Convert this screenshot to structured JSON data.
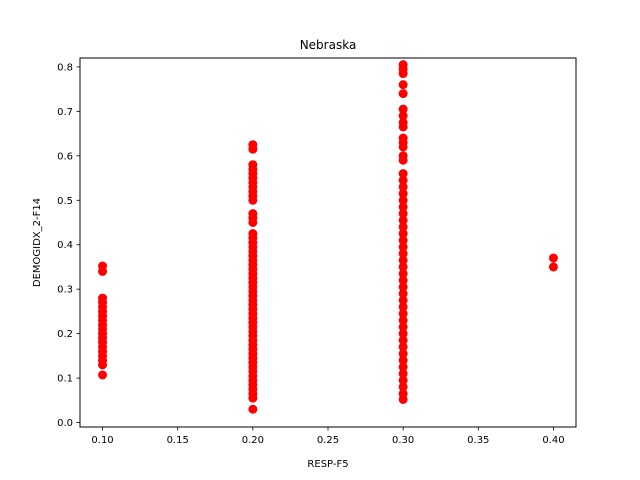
{
  "chart_data": {
    "type": "scatter",
    "title": "Nebraska",
    "xlabel": "RESP-F5",
    "ylabel": "DEMOGIDX_2-F14",
    "xlim": [
      0.085,
      0.415
    ],
    "ylim": [
      -0.01,
      0.82
    ],
    "xticks": [
      0.1,
      0.15,
      0.2,
      0.25,
      0.3,
      0.35,
      0.4
    ],
    "xtick_labels": [
      "0.10",
      "0.15",
      "0.20",
      "0.25",
      "0.30",
      "0.35",
      "0.40"
    ],
    "yticks": [
      0.0,
      0.1,
      0.2,
      0.3,
      0.4,
      0.5,
      0.6,
      0.7,
      0.8
    ],
    "ytick_labels": [
      "0.0",
      "0.1",
      "0.2",
      "0.3",
      "0.4",
      "0.5",
      "0.6",
      "0.7",
      "0.8"
    ],
    "grid": false,
    "marker_color": "#ff0000",
    "series": [
      {
        "points": [
          [
            0.1,
            0.107
          ],
          [
            0.1,
            0.13
          ],
          [
            0.1,
            0.14
          ],
          [
            0.1,
            0.15
          ],
          [
            0.1,
            0.16
          ],
          [
            0.1,
            0.17
          ],
          [
            0.1,
            0.18
          ],
          [
            0.1,
            0.19
          ],
          [
            0.1,
            0.2
          ],
          [
            0.1,
            0.21
          ],
          [
            0.1,
            0.22
          ],
          [
            0.1,
            0.23
          ],
          [
            0.1,
            0.24
          ],
          [
            0.1,
            0.25
          ],
          [
            0.1,
            0.26
          ],
          [
            0.1,
            0.27
          ],
          [
            0.1,
            0.28
          ],
          [
            0.1,
            0.34
          ],
          [
            0.1,
            0.352
          ],
          [
            0.2,
            0.03
          ],
          [
            0.2,
            0.055
          ],
          [
            0.2,
            0.065
          ],
          [
            0.2,
            0.075
          ],
          [
            0.2,
            0.085
          ],
          [
            0.2,
            0.095
          ],
          [
            0.2,
            0.105
          ],
          [
            0.2,
            0.115
          ],
          [
            0.2,
            0.125
          ],
          [
            0.2,
            0.135
          ],
          [
            0.2,
            0.145
          ],
          [
            0.2,
            0.155
          ],
          [
            0.2,
            0.165
          ],
          [
            0.2,
            0.175
          ],
          [
            0.2,
            0.185
          ],
          [
            0.2,
            0.195
          ],
          [
            0.2,
            0.205
          ],
          [
            0.2,
            0.215
          ],
          [
            0.2,
            0.225
          ],
          [
            0.2,
            0.235
          ],
          [
            0.2,
            0.245
          ],
          [
            0.2,
            0.255
          ],
          [
            0.2,
            0.265
          ],
          [
            0.2,
            0.275
          ],
          [
            0.2,
            0.285
          ],
          [
            0.2,
            0.295
          ],
          [
            0.2,
            0.305
          ],
          [
            0.2,
            0.315
          ],
          [
            0.2,
            0.325
          ],
          [
            0.2,
            0.335
          ],
          [
            0.2,
            0.345
          ],
          [
            0.2,
            0.355
          ],
          [
            0.2,
            0.365
          ],
          [
            0.2,
            0.375
          ],
          [
            0.2,
            0.385
          ],
          [
            0.2,
            0.395
          ],
          [
            0.2,
            0.405
          ],
          [
            0.2,
            0.415
          ],
          [
            0.2,
            0.425
          ],
          [
            0.2,
            0.45
          ],
          [
            0.2,
            0.46
          ],
          [
            0.2,
            0.47
          ],
          [
            0.2,
            0.5
          ],
          [
            0.2,
            0.51
          ],
          [
            0.2,
            0.52
          ],
          [
            0.2,
            0.53
          ],
          [
            0.2,
            0.54
          ],
          [
            0.2,
            0.55
          ],
          [
            0.2,
            0.56
          ],
          [
            0.2,
            0.57
          ],
          [
            0.2,
            0.58
          ],
          [
            0.2,
            0.615
          ],
          [
            0.2,
            0.625
          ],
          [
            0.3,
            0.052
          ],
          [
            0.3,
            0.065
          ],
          [
            0.3,
            0.08
          ],
          [
            0.3,
            0.095
          ],
          [
            0.3,
            0.11
          ],
          [
            0.3,
            0.125
          ],
          [
            0.3,
            0.14
          ],
          [
            0.3,
            0.155
          ],
          [
            0.3,
            0.17
          ],
          [
            0.3,
            0.185
          ],
          [
            0.3,
            0.2
          ],
          [
            0.3,
            0.215
          ],
          [
            0.3,
            0.23
          ],
          [
            0.3,
            0.245
          ],
          [
            0.3,
            0.26
          ],
          [
            0.3,
            0.275
          ],
          [
            0.3,
            0.29
          ],
          [
            0.3,
            0.305
          ],
          [
            0.3,
            0.32
          ],
          [
            0.3,
            0.335
          ],
          [
            0.3,
            0.35
          ],
          [
            0.3,
            0.365
          ],
          [
            0.3,
            0.38
          ],
          [
            0.3,
            0.395
          ],
          [
            0.3,
            0.41
          ],
          [
            0.3,
            0.425
          ],
          [
            0.3,
            0.44
          ],
          [
            0.3,
            0.455
          ],
          [
            0.3,
            0.47
          ],
          [
            0.3,
            0.485
          ],
          [
            0.3,
            0.5
          ],
          [
            0.3,
            0.515
          ],
          [
            0.3,
            0.53
          ],
          [
            0.3,
            0.545
          ],
          [
            0.3,
            0.56
          ],
          [
            0.3,
            0.59
          ],
          [
            0.3,
            0.6
          ],
          [
            0.3,
            0.62
          ],
          [
            0.3,
            0.63
          ],
          [
            0.3,
            0.64
          ],
          [
            0.3,
            0.665
          ],
          [
            0.3,
            0.675
          ],
          [
            0.3,
            0.69
          ],
          [
            0.3,
            0.705
          ],
          [
            0.3,
            0.74
          ],
          [
            0.3,
            0.76
          ],
          [
            0.3,
            0.785
          ],
          [
            0.3,
            0.795
          ],
          [
            0.3,
            0.805
          ],
          [
            0.4,
            0.35
          ],
          [
            0.4,
            0.37
          ]
        ]
      }
    ]
  }
}
